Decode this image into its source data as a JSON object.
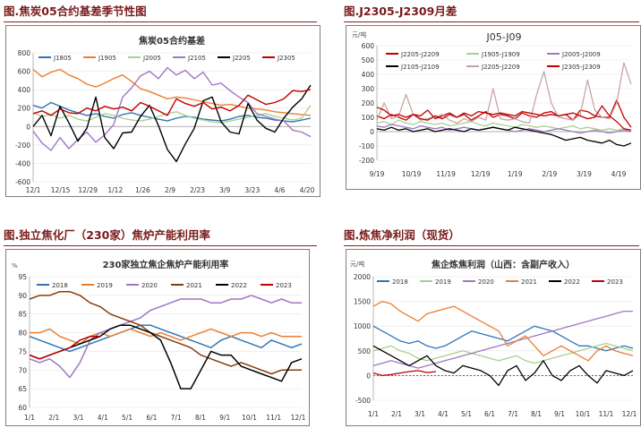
{
  "panels": [
    {
      "heading": "图.焦炭05合约基差季节性图",
      "chart_data": {
        "type": "line",
        "title": "焦炭05合约基差",
        "unit": "",
        "ylim": [
          -600,
          800
        ],
        "yticks": [
          -600,
          -400,
          -200,
          0,
          200,
          400,
          600,
          800
        ],
        "xticks": [
          "12/1",
          "12/15",
          "12/29",
          "1/12",
          "1/26",
          "2/9",
          "2/23",
          "3/9",
          "3/23",
          "4/6",
          "4/20"
        ],
        "legend_position": "top",
        "series": [
          {
            "name": "J1805",
            "color": "#2e75b6",
            "values": [
              230,
              200,
              260,
              220,
              180,
              150,
              120,
              140,
              110,
              90,
              130,
              150,
              120,
              100,
              80,
              60,
              90,
              110,
              100,
              80,
              70,
              60,
              80,
              110,
              120,
              100,
              90,
              70,
              60,
              50,
              70,
              90
            ]
          },
          {
            "name": "J1905",
            "color": "#ed7d31",
            "values": [
              620,
              540,
              590,
              620,
              560,
              520,
              460,
              430,
              470,
              520,
              560,
              490,
              410,
              380,
              340,
              300,
              320,
              310,
              290,
              270,
              250,
              230,
              240,
              220,
              200,
              190,
              180,
              160,
              150,
              140,
              130,
              120
            ]
          },
          {
            "name": "J2005",
            "color": "#a9d18e",
            "values": [
              150,
              110,
              130,
              90,
              120,
              80,
              60,
              100,
              140,
              120,
              90,
              70,
              60,
              80,
              110,
              140,
              160,
              120,
              90,
              70,
              50,
              40,
              60,
              80,
              100,
              120,
              140,
              110,
              90,
              70,
              90,
              230
            ]
          },
          {
            "name": "J2105",
            "color": "#9e77c4",
            "values": [
              -50,
              -180,
              -260,
              -120,
              -240,
              -140,
              -60,
              -170,
              -90,
              20,
              320,
              420,
              550,
              600,
              520,
              640,
              560,
              610,
              520,
              590,
              450,
              470,
              390,
              320,
              260,
              140,
              110,
              80,
              60,
              -40,
              -60,
              -110
            ]
          },
          {
            "name": "J2205",
            "color": "#000000",
            "values": [
              0,
              120,
              -100,
              220,
              40,
              -160,
              -20,
              320,
              -120,
              -240,
              -70,
              -60,
              110,
              230,
              10,
              -250,
              -380,
              -190,
              -20,
              280,
              320,
              50,
              -60,
              -80,
              250,
              70,
              -20,
              -60,
              90,
              210,
              300,
              450
            ]
          },
          {
            "name": "J2305",
            "color": "#c00000",
            "values": [
              140,
              170,
              120,
              190,
              150,
              140,
              200,
              170,
              220,
              190,
              210,
              170,
              260,
              220,
              170,
              120,
              300,
              250,
              220,
              260,
              190,
              210,
              170,
              230,
              340,
              290,
              240,
              260,
              300,
              390,
              380,
              400
            ]
          }
        ]
      }
    },
    {
      "heading": "图.J2305-J2309月差",
      "chart_data": {
        "type": "line",
        "title": "J05-J09",
        "unit": "元/吨",
        "ylim": [
          -200,
          600
        ],
        "yticks": [
          -200,
          -100,
          0,
          100,
          200,
          300,
          400,
          500,
          600
        ],
        "xticks": [
          "9/19",
          "10/19",
          "11/19",
          "12/19",
          "1/19",
          "2/19",
          "3/19",
          "4/19"
        ],
        "legend_position": "inside-top-left",
        "series": [
          {
            "name": "J2205-J2209",
            "color": "#c00000",
            "values": [
              110,
              90,
              120,
              100,
              80,
              120,
              110,
              150,
              90,
              110,
              130,
              100,
              120,
              80,
              110,
              140,
              100,
              120,
              110,
              90,
              130,
              110,
              100,
              130,
              140,
              110,
              120,
              80,
              150,
              140,
              110,
              100,
              100,
              220,
              100,
              30
            ]
          },
          {
            "name": "J1905-J1909",
            "color": "#a9d18e",
            "values": [
              60,
              70,
              50,
              80,
              60,
              50,
              70,
              60,
              50,
              60,
              40,
              50,
              60,
              70,
              50,
              40,
              60,
              50,
              40,
              30,
              50,
              40,
              30,
              40,
              30,
              20,
              30,
              40,
              20,
              30,
              20,
              10,
              20,
              10,
              20,
              10
            ]
          },
          {
            "name": "J2005-J2009",
            "color": "#9e77c4",
            "values": [
              40,
              30,
              50,
              40,
              30,
              20,
              40,
              30,
              20,
              30,
              10,
              20,
              30,
              20,
              10,
              20,
              30,
              20,
              10,
              0,
              10,
              20,
              10,
              0,
              10,
              20,
              10,
              0,
              -10,
              0,
              10,
              0,
              -10,
              0,
              10,
              0
            ]
          },
          {
            "name": "J2105-J2109",
            "color": "#000000",
            "values": [
              20,
              10,
              30,
              10,
              20,
              0,
              10,
              20,
              0,
              10,
              20,
              10,
              0,
              20,
              10,
              20,
              30,
              20,
              10,
              30,
              20,
              10,
              0,
              -10,
              -20,
              -40,
              -60,
              -50,
              -40,
              -60,
              -70,
              -80,
              -60,
              -90,
              -100,
              -80
            ]
          },
          {
            "name": "J2205-J2209",
            "color": "#c7a5a5",
            "values": [
              80,
              200,
              90,
              110,
              260,
              120,
              80,
              90,
              100,
              120,
              80,
              60,
              90,
              70,
              100,
              80,
              300,
              90,
              80,
              90,
              70,
              60,
              260,
              420,
              200,
              100,
              90,
              80,
              120,
              360,
              150,
              100,
              90,
              200,
              480,
              330
            ]
          },
          {
            "name": "J2305-J2309",
            "color": "#c00000",
            "values": [
              170,
              150,
              110,
              120,
              100,
              120,
              90,
              80,
              110,
              90,
              120,
              100,
              130,
              110,
              140,
              130,
              120,
              130,
              120,
              110,
              140,
              130,
              120,
              110,
              120,
              110,
              120,
              130,
              110,
              90,
              100,
              180,
              110,
              70,
              20,
              10
            ]
          }
        ]
      }
    },
    {
      "heading": "图.独立焦化厂（230家）焦炉产能利用率",
      "chart_data": {
        "type": "line",
        "title": "230家独立焦企焦炉产能利用率",
        "unit": "%",
        "ylim": [
          60,
          95
        ],
        "yticks": [
          60,
          65,
          70,
          75,
          80,
          85,
          90,
          95
        ],
        "xticks": [
          "1/1",
          "2/1",
          "3/1",
          "4/1",
          "5/1",
          "6/1",
          "7/1",
          "8/1",
          "9/1",
          "10/1",
          "11/1",
          "12/1"
        ],
        "legend_position": "top",
        "series": [
          {
            "name": "2018",
            "color": "#2e75b6",
            "values": [
              79,
              78,
              77,
              76,
              75,
              76,
              77,
              78,
              79,
              80,
              81,
              82,
              82,
              81,
              80,
              79,
              78,
              77,
              76,
              78,
              79,
              78,
              77,
              76,
              78,
              77,
              76,
              77
            ]
          },
          {
            "name": "2019",
            "color": "#ed7d31",
            "values": [
              80,
              80,
              81,
              79,
              78,
              77,
              79,
              80,
              79,
              80,
              81,
              80,
              79,
              80,
              79,
              78,
              79,
              80,
              81,
              80,
              79,
              80,
              80,
              79,
              80,
              79,
              79,
              79
            ]
          },
          {
            "name": "2020",
            "color": "#9e77c4",
            "values": [
              73,
              72,
              73,
              71,
              68,
              72,
              78,
              80,
              81,
              82,
              83,
              84,
              86,
              87,
              88,
              89,
              89,
              89,
              88,
              88,
              89,
              89,
              90,
              89,
              88,
              89,
              88,
              88
            ]
          },
          {
            "name": "2021",
            "color": "#843c0c",
            "values": [
              89,
              90,
              90,
              91,
              91,
              90,
              88,
              87,
              85,
              84,
              83,
              82,
              80,
              79,
              78,
              77,
              76,
              74,
              73,
              72,
              71,
              72,
              71,
              70,
              69,
              70,
              70,
              70
            ]
          },
          {
            "name": "2022",
            "color": "#000000",
            "values": [
              74,
              73,
              74,
              75,
              76,
              77,
              78,
              79,
              81,
              82,
              82,
              81,
              80,
              78,
              72,
              65,
              65,
              70,
              75,
              74,
              74,
              71,
              70,
              69,
              68,
              67,
              72,
              73
            ]
          },
          {
            "name": "2023",
            "color": "#c00000",
            "values": [
              74,
              73,
              74,
              75,
              76,
              78,
              79,
              79
            ]
          }
        ]
      }
    },
    {
      "heading": "图.炼焦净利润（现货）",
      "chart_data": {
        "type": "line",
        "title": "焦企炼焦利润（山西：含副产收入）",
        "unit": "元/吨",
        "ylim": [
          -500,
          2000
        ],
        "yticks": [
          -500,
          0,
          500,
          1000,
          1500,
          2000
        ],
        "xticks": [
          "1/1",
          "2/1",
          "3/1",
          "4/1",
          "5/1",
          "6/1",
          "7/1",
          "8/1",
          "9/1",
          "10/1",
          "11/1",
          "12/1"
        ],
        "legend_position": "top",
        "series": [
          {
            "name": "2018",
            "color": "#2e75b6",
            "values": [
              1000,
              900,
              800,
              700,
              650,
              700,
              600,
              550,
              600,
              700,
              800,
              900,
              850,
              800,
              750,
              700,
              800,
              900,
              1000,
              950,
              900,
              800,
              700,
              600,
              600,
              550,
              500,
              550,
              600,
              550
            ]
          },
          {
            "name": "2019",
            "color": "#a9d18e",
            "values": [
              500,
              550,
              600,
              500,
              450,
              350,
              300,
              350,
              400,
              450,
              500,
              450,
              400,
              350,
              300,
              350,
              400,
              300,
              250,
              300,
              350,
              400,
              450,
              500,
              550,
              600,
              650,
              600,
              550,
              500
            ]
          },
          {
            "name": "2020",
            "color": "#9e77c4",
            "values": [
              200,
              250,
              300,
              250,
              200,
              150,
              200,
              250,
              300,
              350,
              400,
              450,
              500,
              550,
              600,
              650,
              700,
              750,
              800,
              850,
              900,
              950,
              1000,
              1050,
              1100,
              1150,
              1200,
              1250,
              1300,
              1300
            ]
          },
          {
            "name": "2021",
            "color": "#ed7d31",
            "values": [
              1400,
              1500,
              1450,
              1300,
              1200,
              1100,
              1250,
              1300,
              1350,
              1400,
              1300,
              1200,
              1100,
              1000,
              900,
              600,
              700,
              800,
              600,
              400,
              500,
              600,
              500,
              400,
              300,
              500,
              600,
              500,
              450,
              400
            ]
          },
          {
            "name": "2022",
            "color": "#000000",
            "values": [
              600,
              500,
              400,
              300,
              200,
              300,
              400,
              200,
              100,
              50,
              200,
              150,
              100,
              0,
              -200,
              100,
              200,
              -100,
              50,
              300,
              0,
              -100,
              100,
              200,
              0,
              -150,
              100,
              50,
              0,
              100
            ]
          },
          {
            "name": "2023",
            "color": "#c00000",
            "values": [
              50,
              0,
              20,
              50,
              80,
              100,
              60,
              80
            ]
          }
        ]
      }
    }
  ]
}
